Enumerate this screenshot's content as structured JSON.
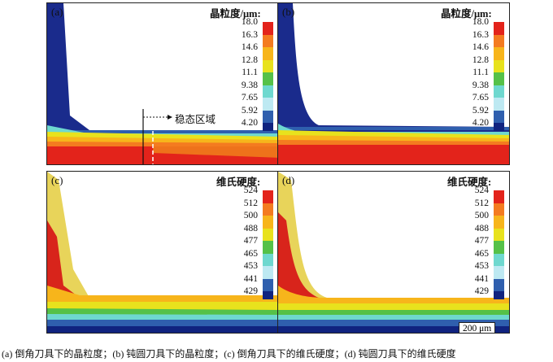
{
  "panels": [
    {
      "id": "a",
      "label": "(a)",
      "legend_title": "晶粒度/μm:",
      "ticks": [
        "18.0",
        "16.3",
        "14.6",
        "12.8",
        "11.1",
        "9.38",
        "7.65",
        "5.92",
        "4.20"
      ],
      "tool": "chamfer"
    },
    {
      "id": "b",
      "label": "(b)",
      "legend_title": "晶粒度/μm:",
      "ticks": [
        "18.0",
        "16.3",
        "14.6",
        "12.8",
        "11.1",
        "9.38",
        "7.65",
        "5.92",
        "4.20"
      ],
      "tool": "round"
    },
    {
      "id": "c",
      "label": "(c)",
      "legend_title": "维氏硬度:",
      "ticks": [
        "524",
        "512",
        "500",
        "488",
        "477",
        "465",
        "453",
        "441",
        "429"
      ],
      "tool": "chamfer"
    },
    {
      "id": "d",
      "label": "(d)",
      "legend_title": "维氏硬度:",
      "ticks": [
        "524",
        "512",
        "500",
        "488",
        "477",
        "465",
        "453",
        "441",
        "429"
      ],
      "tool": "round"
    }
  ],
  "legend_colors": [
    "#e3231b",
    "#f47b20",
    "#f7b51b",
    "#e8e21d",
    "#55c148",
    "#6ed8cf",
    "#bde9f2",
    "#2f5fae",
    "#10237f"
  ],
  "region_label": "稳态区域",
  "scale_bar": "200 μm",
  "caption": "(a) 倒角刀具下的晶粒度；(b) 钝圆刀具下的晶粒度；(c) 倒角刀具下的维氏硬度；(d) 钝圆刀具下的维氏硬度"
}
